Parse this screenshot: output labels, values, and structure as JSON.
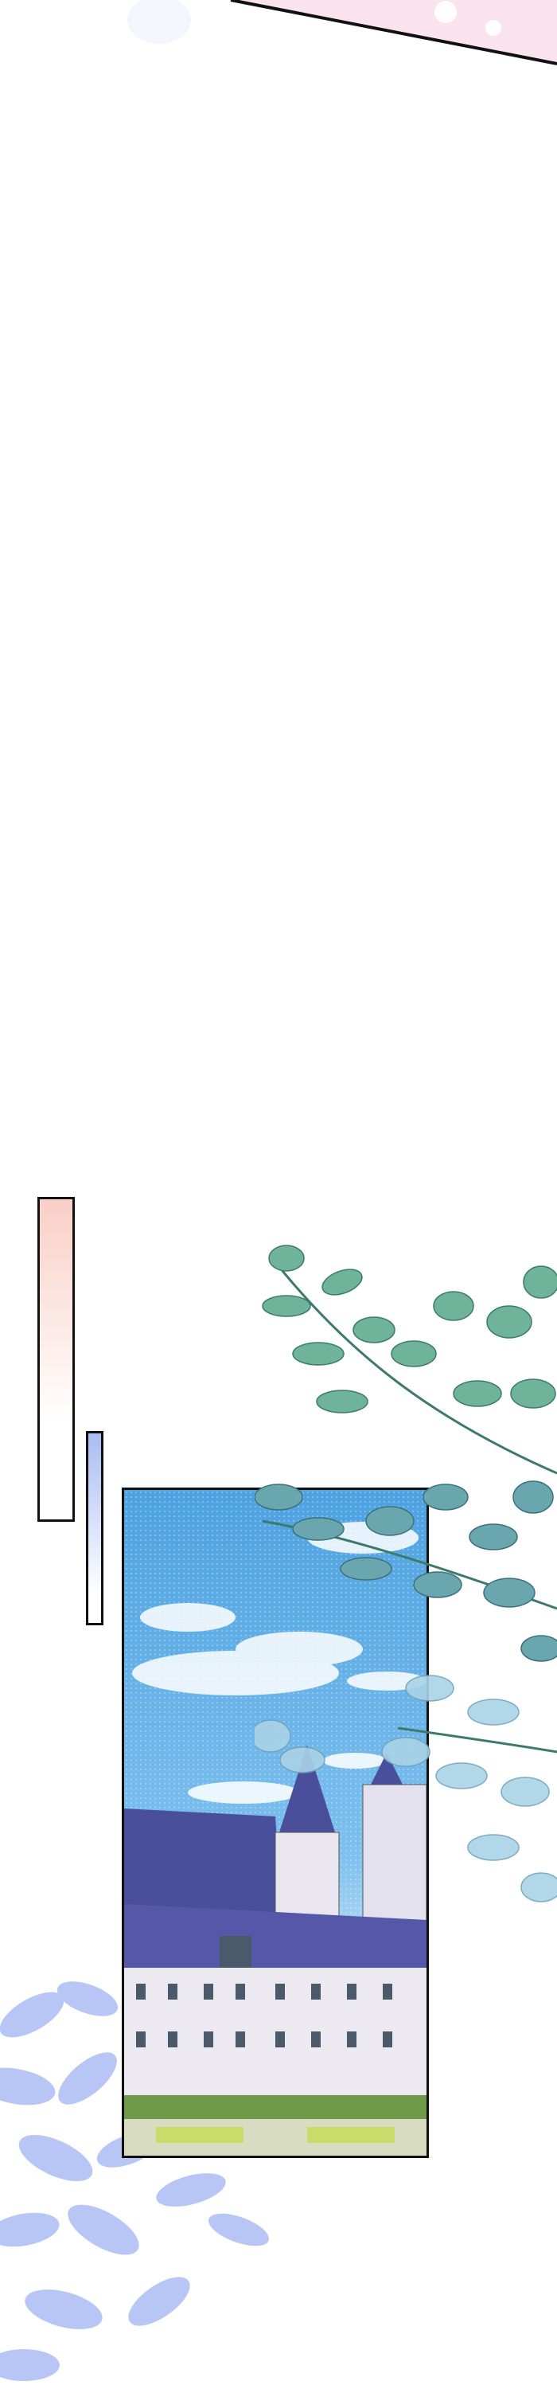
{
  "scene": {
    "type": "comic-panel",
    "subject": "castle",
    "colors": {
      "background": "#ffffff",
      "pink_bar": "#f9cfc6",
      "blue_bar": "#a9bdf2",
      "sky": "#4da2e0",
      "roof": "#4a4f9c",
      "leaves": "#5fa79a",
      "silhouette_leaves": "#b7c6f5",
      "panel_border": "#111111"
    }
  }
}
